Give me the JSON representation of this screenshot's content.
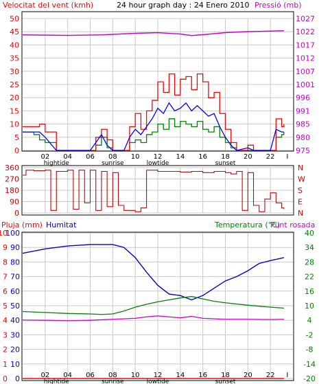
{
  "header": {
    "wind_label": "Velocitat del vent (kmh)",
    "title": "24 hour graph day : 24 Enero 2010",
    "pressure_label": "Pressió (mb)"
  },
  "lower_header": {
    "rain_label": "Pluja (mm)",
    "humidity_label": "Humitat",
    "temp_label": "Temperatura (°C)",
    "dew_label": "Punt rosada"
  },
  "colors": {
    "wind": "#ff0000",
    "gust": "#0000ff",
    "avgwind": "#008000",
    "pressure": "#cc00cc",
    "direction": "#cc0000",
    "humidity": "#0000cc",
    "temperature": "#008000",
    "dew": "#cc00cc",
    "rain": "#ff0000",
    "grid": "#c8c8c8",
    "axis": "#000000"
  },
  "chart_data": [
    {
      "type": "line",
      "name": "wind-pressure",
      "x_ticks": [
        "02",
        "04",
        "06",
        "08",
        "10",
        "12",
        "14",
        "16",
        "18",
        "20",
        "22",
        "I"
      ],
      "event_labels": [
        {
          "text": "hightide",
          "x": 3
        },
        {
          "text": "sunrise",
          "x": 8
        },
        {
          "text": "lowtide",
          "x": 12
        },
        {
          "text": "sunset",
          "x": 18
        }
      ],
      "wind_axis": [
        0,
        5,
        10,
        15,
        20,
        25,
        30,
        35,
        40,
        45,
        50
      ],
      "pressure_axis": [
        975,
        980,
        985,
        991,
        996,
        1001,
        1007,
        1012,
        1017,
        1022,
        1027
      ],
      "wind_max": [
        [
          0,
          9
        ],
        [
          1,
          9
        ],
        [
          1.5,
          10
        ],
        [
          2,
          7
        ],
        [
          3,
          0
        ],
        [
          6,
          0
        ],
        [
          6.5,
          5
        ],
        [
          7,
          8
        ],
        [
          7.5,
          4
        ],
        [
          8,
          0
        ],
        [
          9,
          0
        ],
        [
          9.5,
          9
        ],
        [
          10,
          14
        ],
        [
          10.5,
          8
        ],
        [
          11,
          15
        ],
        [
          11.5,
          19
        ],
        [
          12,
          26
        ],
        [
          12.5,
          22
        ],
        [
          13,
          29
        ],
        [
          13.5,
          21
        ],
        [
          14,
          27
        ],
        [
          14.5,
          28
        ],
        [
          15,
          23
        ],
        [
          15.5,
          29
        ],
        [
          16,
          26
        ],
        [
          16.5,
          20
        ],
        [
          17,
          22
        ],
        [
          17.5,
          14
        ],
        [
          18,
          8
        ],
        [
          18.5,
          3
        ],
        [
          19,
          0
        ],
        [
          20,
          2
        ],
        [
          20.5,
          0
        ],
        [
          22,
          0
        ],
        [
          22.5,
          12
        ],
        [
          23,
          9
        ],
        [
          23.2,
          10
        ]
      ],
      "wind_avg": [
        [
          0,
          7
        ],
        [
          1,
          7
        ],
        [
          1.5,
          7
        ],
        [
          2,
          5
        ],
        [
          3,
          0
        ],
        [
          6,
          0
        ],
        [
          6.5,
          3
        ],
        [
          7,
          6
        ],
        [
          7.5,
          2
        ],
        [
          8,
          0
        ],
        [
          9,
          0
        ],
        [
          9.5,
          5
        ],
        [
          10,
          8
        ],
        [
          10.5,
          6
        ],
        [
          11,
          9
        ],
        [
          11.5,
          12
        ],
        [
          12,
          16
        ],
        [
          12.5,
          14
        ],
        [
          13,
          18
        ],
        [
          13.5,
          15
        ],
        [
          14,
          16
        ],
        [
          14.5,
          18
        ],
        [
          15,
          15
        ],
        [
          15.5,
          17
        ],
        [
          16,
          15
        ],
        [
          16.5,
          13
        ],
        [
          17,
          14
        ],
        [
          17.5,
          9
        ],
        [
          18,
          5
        ],
        [
          18.5,
          2
        ],
        [
          19,
          0
        ],
        [
          20,
          1
        ],
        [
          20.5,
          0
        ],
        [
          22,
          0
        ],
        [
          22.5,
          8
        ],
        [
          23,
          7
        ],
        [
          23.2,
          7
        ]
      ],
      "wind_green": [
        [
          0,
          7
        ],
        [
          1,
          6
        ],
        [
          1.5,
          4
        ],
        [
          2,
          3
        ],
        [
          3,
          0
        ],
        [
          6,
          0
        ],
        [
          6.5,
          2
        ],
        [
          7,
          5
        ],
        [
          7.5,
          1
        ],
        [
          8,
          0
        ],
        [
          9,
          0
        ],
        [
          9.5,
          3
        ],
        [
          10,
          4
        ],
        [
          10.5,
          3
        ],
        [
          11,
          6
        ],
        [
          11.5,
          7
        ],
        [
          12,
          10
        ],
        [
          12.5,
          8
        ],
        [
          13,
          12
        ],
        [
          13.5,
          9
        ],
        [
          14,
          11
        ],
        [
          14.5,
          10
        ],
        [
          15,
          9
        ],
        [
          15.5,
          11
        ],
        [
          16,
          8
        ],
        [
          16.5,
          7
        ],
        [
          17,
          9
        ],
        [
          17.5,
          5
        ],
        [
          18,
          3
        ],
        [
          18.5,
          1
        ],
        [
          19,
          0
        ],
        [
          22,
          0
        ],
        [
          22.5,
          5
        ],
        [
          23,
          6
        ],
        [
          23.2,
          7
        ]
      ],
      "pressure": [
        [
          0,
          1019.5
        ],
        [
          4,
          1019.2
        ],
        [
          7,
          1019.5
        ],
        [
          10,
          1020.4
        ],
        [
          12,
          1020.8
        ],
        [
          14,
          1020
        ],
        [
          15,
          1019.1
        ],
        [
          16,
          1019.6
        ],
        [
          18,
          1020.8
        ],
        [
          20,
          1021.4
        ],
        [
          22,
          1021.7
        ],
        [
          23.2,
          1021.9
        ]
      ]
    },
    {
      "type": "line",
      "name": "wind-direction",
      "left_axis": [
        0,
        90,
        180,
        270,
        360
      ],
      "right_labels": [
        "N",
        "W",
        "S",
        "E",
        "N"
      ],
      "direction": [
        [
          0,
          300
        ],
        [
          0.3,
          340
        ],
        [
          1,
          335
        ],
        [
          2,
          340
        ],
        [
          2.5,
          20
        ],
        [
          3,
          330
        ],
        [
          4,
          340
        ],
        [
          4.5,
          30
        ],
        [
          5,
          340
        ],
        [
          5.5,
          80
        ],
        [
          6,
          340
        ],
        [
          6.5,
          20
        ],
        [
          7,
          330
        ],
        [
          7.5,
          50
        ],
        [
          8,
          320
        ],
        [
          8.5,
          60
        ],
        [
          9,
          20
        ],
        [
          10,
          10
        ],
        [
          10.5,
          40
        ],
        [
          11,
          340
        ],
        [
          12,
          330
        ],
        [
          13,
          330
        ],
        [
          14,
          325
        ],
        [
          15,
          330
        ],
        [
          16,
          320
        ],
        [
          17,
          330
        ],
        [
          18,
          320
        ],
        [
          18.5,
          310
        ],
        [
          19,
          330
        ],
        [
          19.5,
          20
        ],
        [
          20,
          320
        ],
        [
          20.5,
          60
        ],
        [
          21,
          10
        ],
        [
          21.5,
          110
        ],
        [
          22,
          160
        ],
        [
          22.5,
          80
        ],
        [
          23,
          40
        ],
        [
          23.2,
          30
        ]
      ]
    },
    {
      "type": "line",
      "name": "humidity-temperature",
      "rain_axis": [
        0,
        1,
        2,
        3,
        4,
        5,
        6,
        7,
        8,
        9,
        10
      ],
      "humidity_axis": [
        0,
        10,
        20,
        30,
        40,
        50,
        60,
        70,
        80,
        90,
        100
      ],
      "temp_axis": [
        -20,
        -14,
        -8,
        -2,
        4,
        10,
        16,
        22,
        28,
        34,
        40
      ],
      "humidity": [
        [
          0,
          86
        ],
        [
          2,
          89
        ],
        [
          4,
          91
        ],
        [
          6,
          92
        ],
        [
          8,
          92
        ],
        [
          9,
          90
        ],
        [
          10,
          83
        ],
        [
          11,
          73
        ],
        [
          12,
          64
        ],
        [
          13,
          58
        ],
        [
          14,
          57
        ],
        [
          15,
          54
        ],
        [
          16,
          57
        ],
        [
          17,
          62
        ],
        [
          18,
          67
        ],
        [
          19,
          70
        ],
        [
          20,
          74
        ],
        [
          21,
          79
        ],
        [
          22,
          81
        ],
        [
          23.2,
          83
        ]
      ],
      "temperature": [
        [
          0,
          7.6
        ],
        [
          2,
          7.2
        ],
        [
          4,
          6.8
        ],
        [
          6,
          6.6
        ],
        [
          7,
          6.4
        ],
        [
          8,
          6.6
        ],
        [
          9,
          7.8
        ],
        [
          10,
          9.4
        ],
        [
          11,
          10.6
        ],
        [
          12,
          11.6
        ],
        [
          13,
          12.4
        ],
        [
          14,
          13.2
        ],
        [
          15,
          13.8
        ],
        [
          16,
          12.8
        ],
        [
          17,
          11.8
        ],
        [
          18,
          11.2
        ],
        [
          20,
          10.2
        ],
        [
          22,
          9.4
        ],
        [
          23.2,
          9
        ]
      ],
      "dew": [
        [
          0,
          4.1
        ],
        [
          2,
          4
        ],
        [
          4,
          3.8
        ],
        [
          6,
          4
        ],
        [
          8,
          4.4
        ],
        [
          10,
          4.8
        ],
        [
          11,
          5.4
        ],
        [
          12,
          5.8
        ],
        [
          13,
          5.4
        ],
        [
          14,
          5
        ],
        [
          15,
          5.6
        ],
        [
          16,
          4.8
        ],
        [
          18,
          4.4
        ],
        [
          20,
          4.4
        ],
        [
          22,
          4.3
        ],
        [
          23.2,
          4.4
        ]
      ],
      "rain": [
        [
          0,
          0
        ],
        [
          23.2,
          0
        ]
      ]
    }
  ]
}
